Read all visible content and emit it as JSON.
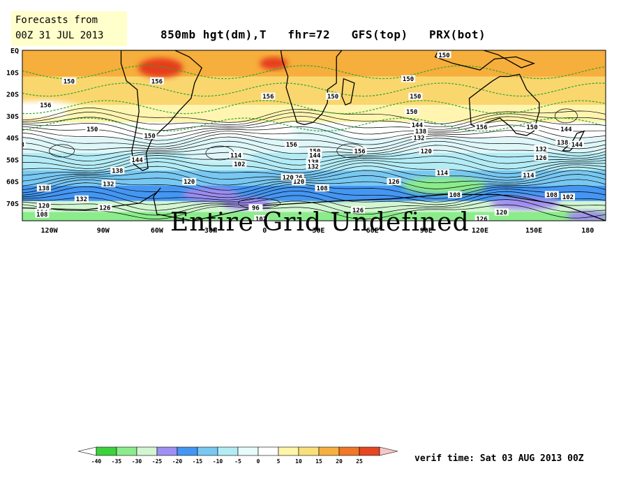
{
  "forecast_box": {
    "line1": "Forecasts from",
    "line2": "00Z 31 JUL 2013"
  },
  "title": "850mb hgt(dm),T   fhr=72   GFS(top)   PRX(bot)",
  "overlay_text": "Entire Grid Undefined",
  "verif_time": "verif time: Sat 03 AUG 2013 00Z",
  "lat_labels": [
    "EQ",
    "10S",
    "20S",
    "30S",
    "40S",
    "50S",
    "60S",
    "70S"
  ],
  "lon_labels": [
    "120W",
    "90W",
    "60W",
    "30W",
    "0",
    "30E",
    "60E",
    "90E",
    "120E",
    "150E",
    "180"
  ],
  "contour_labels": [
    {
      "text": "150",
      "lat": -14,
      "lon": -109
    },
    {
      "text": "156",
      "lat": -25,
      "lon": -122
    },
    {
      "text": "150",
      "lat": -36,
      "lon": -96
    },
    {
      "text": "144",
      "lat": -36,
      "lon": -145
    },
    {
      "text": "138",
      "lat": -43,
      "lon": -137
    },
    {
      "text": "126",
      "lat": -56,
      "lon": -146
    },
    {
      "text": "138",
      "lat": -63,
      "lon": -123
    },
    {
      "text": "132",
      "lat": -68,
      "lon": -102
    },
    {
      "text": "120",
      "lat": -71,
      "lon": -123
    },
    {
      "text": "114",
      "lat": -74,
      "lon": -124
    },
    {
      "text": "108",
      "lat": -75,
      "lon": -124
    },
    {
      "text": "126",
      "lat": -72,
      "lon": -89
    },
    {
      "text": "156",
      "lat": -14,
      "lon": -60
    },
    {
      "text": "156",
      "lat": -21,
      "lon": 2
    },
    {
      "text": "144",
      "lat": -50,
      "lon": -71
    },
    {
      "text": "138",
      "lat": -55,
      "lon": -82
    },
    {
      "text": "132",
      "lat": -61,
      "lon": -87
    },
    {
      "text": "150",
      "lat": -39,
      "lon": -64
    },
    {
      "text": "120",
      "lat": -60,
      "lon": -42
    },
    {
      "text": "114",
      "lat": -48,
      "lon": -16
    },
    {
      "text": "102",
      "lat": -52,
      "lon": -14
    },
    {
      "text": "156",
      "lat": -43,
      "lon": 15
    },
    {
      "text": "150",
      "lat": -46,
      "lon": 28
    },
    {
      "text": "144",
      "lat": -48,
      "lon": 28
    },
    {
      "text": "138",
      "lat": -51,
      "lon": 27
    },
    {
      "text": "132",
      "lat": -53,
      "lon": 27
    },
    {
      "text": "126",
      "lat": -58,
      "lon": 18
    },
    {
      "text": "120",
      "lat": -60,
      "lon": 19
    },
    {
      "text": "108",
      "lat": -63,
      "lon": 32
    },
    {
      "text": "96",
      "lat": -72,
      "lon": -5
    },
    {
      "text": "102",
      "lat": -77,
      "lon": -2
    },
    {
      "text": "126",
      "lat": -73,
      "lon": 52
    },
    {
      "text": "156",
      "lat": -46,
      "lon": 53
    },
    {
      "text": "150",
      "lat": -13,
      "lon": 80
    },
    {
      "text": "150",
      "lat": -28,
      "lon": 82
    },
    {
      "text": "144",
      "lat": -34,
      "lon": 85
    },
    {
      "text": "138",
      "lat": -37,
      "lon": 87
    },
    {
      "text": "132",
      "lat": -40,
      "lon": 86
    },
    {
      "text": "120",
      "lat": -46,
      "lon": 90
    },
    {
      "text": "126",
      "lat": -60,
      "lon": 72
    },
    {
      "text": "114",
      "lat": -56,
      "lon": 99
    },
    {
      "text": "108",
      "lat": -66,
      "lon": 106
    },
    {
      "text": "120",
      "lat": -79,
      "lon": 61
    },
    {
      "text": "132",
      "lat": -80,
      "lon": 92
    },
    {
      "text": "126",
      "lat": -77,
      "lon": 121
    },
    {
      "text": "120",
      "lat": -74,
      "lon": 132
    },
    {
      "text": "150",
      "lat": -2,
      "lon": 100
    },
    {
      "text": "156",
      "lat": -35,
      "lon": 121
    },
    {
      "text": "150",
      "lat": -35,
      "lon": 149
    },
    {
      "text": "144",
      "lat": -36,
      "lon": 168
    },
    {
      "text": "138",
      "lat": -42,
      "lon": 166
    },
    {
      "text": "132",
      "lat": -45,
      "lon": 154
    },
    {
      "text": "126",
      "lat": -49,
      "lon": 154
    },
    {
      "text": "144",
      "lat": -43,
      "lon": 174
    },
    {
      "text": "114",
      "lat": -57,
      "lon": 147
    },
    {
      "text": "102",
      "lat": -67,
      "lon": 169
    },
    {
      "text": "108",
      "lat": -66,
      "lon": 160
    },
    {
      "text": "150",
      "lat": -21,
      "lon": 38
    },
    {
      "text": "150",
      "lat": -21,
      "lon": 84
    },
    {
      "text": "120",
      "lat": -58,
      "lon": 13
    }
  ],
  "colorbar": {
    "ticks": [
      "-40",
      "-35",
      "-30",
      "-25",
      "-20",
      "-15",
      "-10",
      "-5",
      "0",
      "5",
      "10",
      "15",
      "20",
      "25"
    ],
    "colors": [
      "#3cd23c",
      "#8cec8c",
      "#d2f6d2",
      "#9f8ff4",
      "#4496f2",
      "#78c8f2",
      "#b4ecf6",
      "#e8fbfb",
      "#ffffff",
      "#fff5a8",
      "#fae07a",
      "#f6b040",
      "#f07828",
      "#e64622",
      "#f5c8c8"
    ],
    "low_arrow": "#ffffff",
    "high_arrow": "#f5c8c8"
  },
  "temperature_colors": {
    "t25plus": "#e63c1e",
    "t20": "#f07828",
    "t15": "#f6ae3c",
    "t10": "#fad66e",
    "t5": "#fff5b0",
    "t0": "#ffffff",
    "tm5": "#dff7f9",
    "tm10": "#b4ecf6",
    "tm15": "#78c8f2",
    "tm20": "#4496f2",
    "tm25": "#a08cf0",
    "tm30": "#d2f6d2",
    "tm35": "#8cec8c",
    "tm40": "#3cd23c"
  }
}
